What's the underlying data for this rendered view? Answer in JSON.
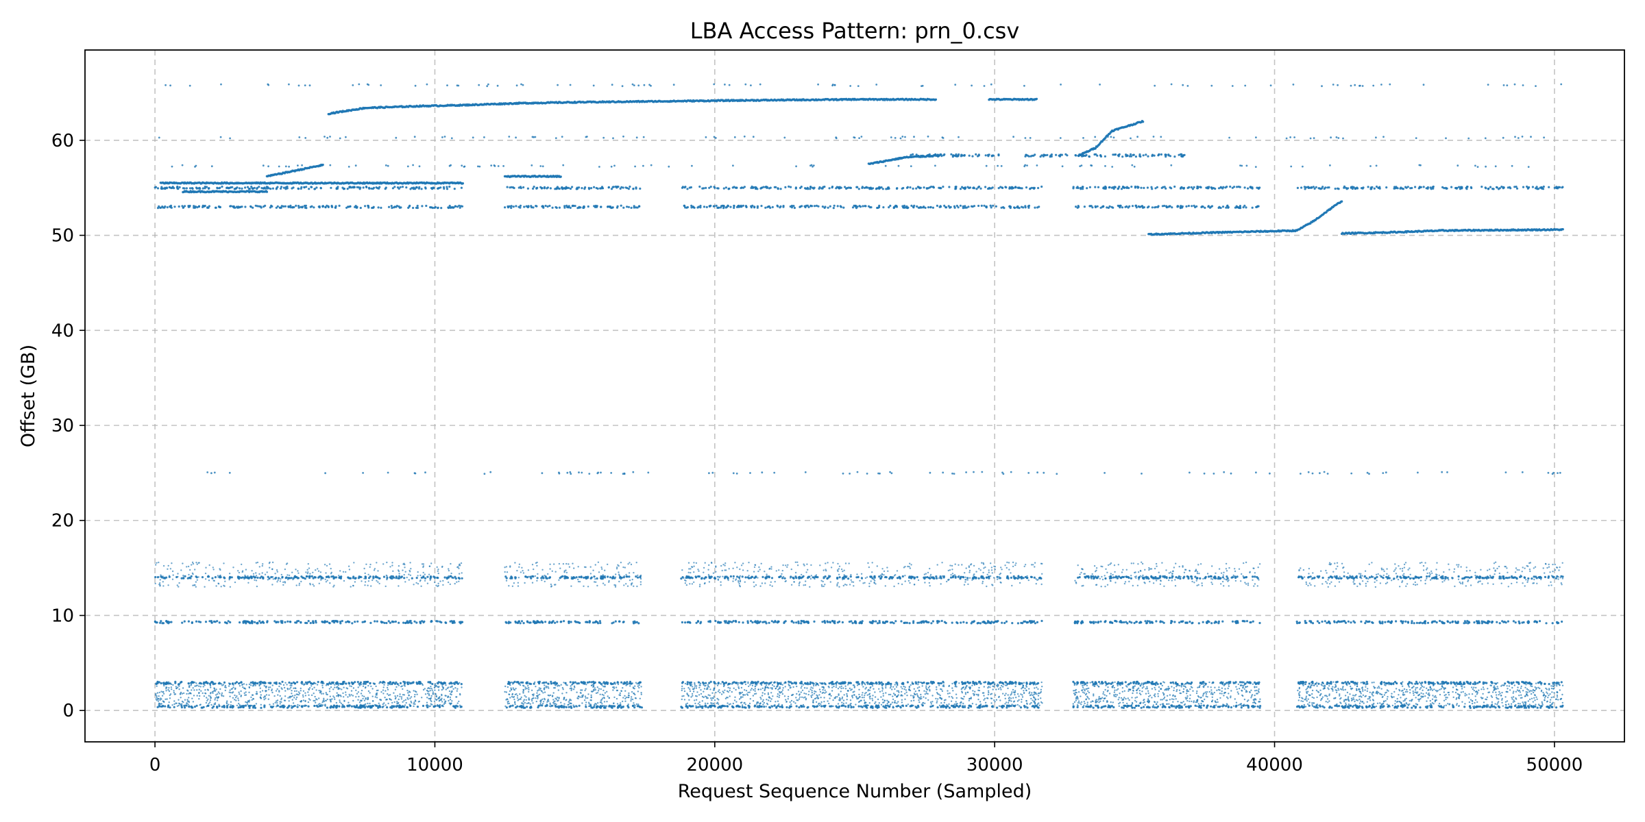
{
  "chart_data": {
    "type": "scatter",
    "title": "LBA Access Pattern: prn_0.csv",
    "xlabel": "Request Sequence Number (Sampled)",
    "ylabel": "Offset (GB)",
    "xlim": [
      -2500,
      52500
    ],
    "ylim": [
      -3.3,
      69.5
    ],
    "xticks": [
      0,
      10000,
      20000,
      30000,
      40000,
      50000
    ],
    "yticks": [
      0,
      10,
      20,
      30,
      40,
      50,
      60
    ],
    "grid": true,
    "legend": "none",
    "marker_color": "#1f77b4",
    "series": [
      {
        "values_description": "dense bands",
        "bands": [
          {
            "y": 0.4,
            "x_ranges": [
              [
                0,
                11000
              ],
              [
                12500,
                17400
              ],
              [
                18800,
                31700
              ],
              [
                32800,
                39500
              ],
              [
                40800,
                50300
              ]
            ]
          },
          {
            "y": 2.9,
            "x_ranges": [
              [
                0,
                11000
              ],
              [
                12500,
                17400
              ],
              [
                18800,
                31700
              ],
              [
                32800,
                39500
              ],
              [
                40800,
                50300
              ]
            ]
          },
          {
            "y": 9.3,
            "x_ranges": [
              [
                0,
                11000
              ],
              [
                12500,
                17400
              ],
              [
                18800,
                31700
              ],
              [
                32800,
                39500
              ],
              [
                40800,
                50300
              ]
            ]
          },
          {
            "y": 14.0,
            "x_ranges": [
              [
                0,
                11000
              ],
              [
                12500,
                17400
              ],
              [
                18800,
                31700
              ],
              [
                32800,
                39500
              ],
              [
                40800,
                50300
              ]
            ]
          },
          {
            "y": 53.0,
            "x_ranges": [
              [
                0,
                11000
              ],
              [
                12500,
                17400
              ],
              [
                18800,
                31700
              ],
              [
                32800,
                39500
              ]
            ]
          },
          {
            "y": 55.0,
            "x_ranges": [
              [
                0,
                11000
              ],
              [
                12500,
                17400
              ],
              [
                18800,
                31700
              ],
              [
                32800,
                39500
              ],
              [
                40800,
                50300
              ]
            ]
          },
          {
            "y": 58.4,
            "x_ranges": [
              [
                27000,
                30200
              ],
              [
                31000,
                36800
              ]
            ]
          }
        ]
      },
      {
        "values_description": "sequential segments",
        "segments": [
          {
            "x": [
              6200,
              7500,
              9500,
              11000,
              13000,
              15000,
              18000,
              21000,
              25000,
              27900
            ],
            "y": [
              62.8,
              63.4,
              63.6,
              63.7,
              63.9,
              64.0,
              64.1,
              64.2,
              64.3,
              64.3
            ]
          },
          {
            "x": [
              29800,
              31500
            ],
            "y": [
              64.3,
              64.3
            ]
          },
          {
            "x": [
              33000,
              33600,
              34200,
              35300
            ],
            "y": [
              58.4,
              59.2,
              61.0,
              62.0
            ]
          },
          {
            "x": [
              35500,
              38000,
              40800,
              41400,
              42000,
              42400
            ],
            "y": [
              50.1,
              50.3,
              50.5,
              51.5,
              52.8,
              53.6
            ]
          },
          {
            "x": [
              42400,
              44000,
              46000,
              50300
            ],
            "y": [
              50.2,
              50.3,
              50.5,
              50.6
            ]
          },
          {
            "x": [
              25500,
              26800,
              28000
            ],
            "y": [
              57.5,
              58.2,
              58.4
            ]
          },
          {
            "x": [
              4000,
              5000,
              6000
            ],
            "y": [
              56.2,
              56.8,
              57.4
            ]
          },
          {
            "x": [
              200,
              11000
            ],
            "y": [
              55.5,
              55.5
            ]
          },
          {
            "x": [
              1000,
              4000
            ],
            "y": [
              54.6,
              54.6
            ]
          },
          {
            "x": [
              12500,
              14500
            ],
            "y": [
              56.2,
              56.2
            ]
          }
        ]
      },
      {
        "values_description": "sparse points",
        "y_levels": [
          25.0,
          57.3,
          65.8,
          60.3
        ]
      }
    ]
  }
}
